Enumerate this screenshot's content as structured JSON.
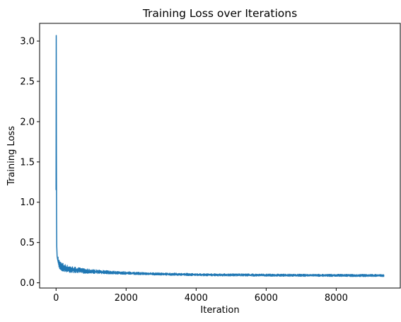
{
  "chart_data": {
    "type": "line",
    "title": "Training Loss over Iterations",
    "xlabel": "Iteration",
    "ylabel": "Training Loss",
    "xlim": [
      -470,
      9830
    ],
    "ylim": [
      -0.065,
      3.22
    ],
    "grid": false,
    "legend": "none",
    "x_ticks": [
      {
        "value": 0,
        "label": "0"
      },
      {
        "value": 2000,
        "label": "2000"
      },
      {
        "value": 4000,
        "label": "4000"
      },
      {
        "value": 6000,
        "label": "6000"
      },
      {
        "value": 8000,
        "label": "8000"
      }
    ],
    "y_ticks": [
      {
        "value": 0.0,
        "label": "0.0"
      },
      {
        "value": 0.5,
        "label": "0.5"
      },
      {
        "value": 1.0,
        "label": "1.0"
      },
      {
        "value": 1.5,
        "label": "1.5"
      },
      {
        "value": 2.0,
        "label": "2.0"
      },
      {
        "value": 2.5,
        "label": "2.5"
      },
      {
        "value": 3.0,
        "label": "3.0"
      }
    ],
    "series": [
      {
        "color": "#1f77b4",
        "x": [
          0,
          5,
          10,
          15,
          20,
          30,
          40,
          50,
          60,
          80,
          100,
          150,
          200,
          300,
          400,
          500,
          600,
          700,
          800,
          1000,
          1200,
          1500,
          2000,
          2500,
          3000,
          3500,
          4000,
          4500,
          5000,
          5500,
          6000,
          6500,
          7000,
          7500,
          8000,
          8500,
          9000,
          9370
        ],
        "y": [
          1.15,
          3.07,
          1.6,
          0.8,
          0.45,
          0.33,
          0.3,
          0.28,
          0.26,
          0.24,
          0.22,
          0.2,
          0.19,
          0.175,
          0.165,
          0.16,
          0.155,
          0.15,
          0.145,
          0.14,
          0.135,
          0.128,
          0.12,
          0.113,
          0.108,
          0.104,
          0.1,
          0.098,
          0.097,
          0.096,
          0.094,
          0.093,
          0.092,
          0.092,
          0.091,
          0.09,
          0.09,
          0.089
        ]
      }
    ]
  }
}
